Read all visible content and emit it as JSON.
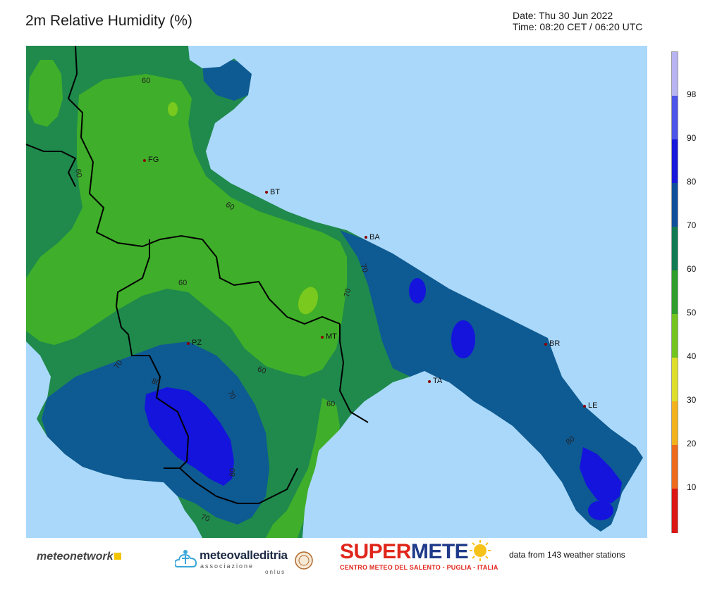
{
  "header": {
    "title": "2m Relative Humidity (%)",
    "date": "Date: Thu 30 Jun 2022",
    "time": "Time: 08:20 CET / 06:20 UTC"
  },
  "colors": {
    "sea": "#aad8fb",
    "hum_40_50": "#79c91e",
    "hum_50_60": "#3fae2a",
    "hum_60_70": "#1f8a4c",
    "hum_70_80": "#0e5a93",
    "hum_80_90": "#1414dc",
    "hum_90_98": "#3050e6",
    "border": "#000000",
    "city_dot": "#8b0000"
  },
  "colorbar": {
    "ticks": [
      "98",
      "90",
      "80",
      "70",
      "60",
      "50",
      "40",
      "30",
      "20",
      "10"
    ],
    "segments": [
      "#b8b4f2",
      "#4d55e8",
      "#1818dc",
      "#0e4f9c",
      "#107a52",
      "#2f9e2c",
      "#73c41f",
      "#dede2a",
      "#f2b21e",
      "#ee6a1c",
      "#dc1515"
    ]
  },
  "cities": [
    {
      "code": "FG"
    },
    {
      "code": "BT"
    },
    {
      "code": "BA"
    },
    {
      "code": "MT"
    },
    {
      "code": "PZ"
    },
    {
      "code": "TA"
    },
    {
      "code": "BR"
    },
    {
      "code": "LE"
    }
  ],
  "contour_labels": [
    "60",
    "60",
    "60",
    "70",
    "70",
    "60",
    "60",
    "60",
    "70",
    "80",
    "70",
    "80",
    "60",
    "80",
    "70",
    "80"
  ],
  "footer": {
    "meteonetwork": "meteonetwork",
    "mvi_name": "meteovalleditria",
    "mvi_sub1": "associazione",
    "mvi_sub2": "onlus",
    "supermeteo_a": "SUPER",
    "supermeteo_b": "METE",
    "supermeteo_tag": "CENTRO METEO DEL SALENTO - PUGLIA - ITALIA",
    "stations": "data from 143 weather stations"
  }
}
